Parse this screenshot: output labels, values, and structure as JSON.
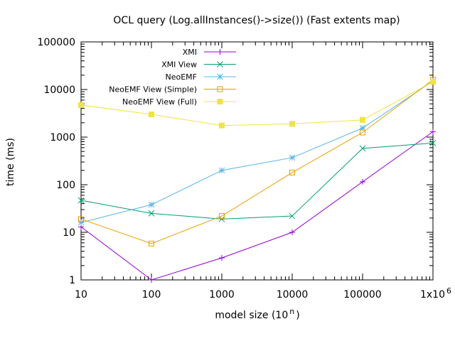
{
  "chart_data": {
    "type": "line",
    "title": "OCL query (Log.allInstances()->size()) (Fast extents map)",
    "xlabel_base": "model size (10",
    "xlabel_sup": "n",
    "xlabel_tail": ")",
    "ylabel": "time (ms)",
    "xscale": "log",
    "yscale": "log",
    "xlim": [
      10,
      1000000
    ],
    "ylim": [
      1,
      100000
    ],
    "grid": false,
    "legend_position": "top-right",
    "x_ticks": [
      {
        "value": 10,
        "label": "10"
      },
      {
        "value": 100,
        "label": "100"
      },
      {
        "value": 1000,
        "label": "1000"
      },
      {
        "value": 10000,
        "label": "10000"
      },
      {
        "value": 100000,
        "label": "100000"
      },
      {
        "value": 1000000,
        "label": "1x10",
        "sup": "6"
      }
    ],
    "y_ticks": [
      {
        "value": 1,
        "label": "1"
      },
      {
        "value": 10,
        "label": "10"
      },
      {
        "value": 100,
        "label": "100"
      },
      {
        "value": 1000,
        "label": "1000"
      },
      {
        "value": 10000,
        "label": "10000"
      },
      {
        "value": 100000,
        "label": "100000"
      }
    ],
    "x": [
      10,
      100,
      1000,
      10000,
      100000,
      1000000
    ],
    "series": [
      {
        "name": "XMI",
        "color": "#9400d3",
        "marker": "plus",
        "values": [
          13,
          1,
          2.9,
          10,
          115,
          1300
        ]
      },
      {
        "name": "XMI View",
        "color": "#009e73",
        "marker": "cross",
        "values": [
          47,
          25,
          19,
          22,
          580,
          750
        ]
      },
      {
        "name": "NeoEMF",
        "color": "#56b4e9",
        "marker": "star",
        "values": [
          16,
          38,
          200,
          370,
          1550,
          15000
        ]
      },
      {
        "name": "NeoEMF View (Simple)",
        "color": "#e69f00",
        "marker": "square-open",
        "values": [
          19,
          5.8,
          22,
          180,
          1250,
          16000
        ]
      },
      {
        "name": "NeoEMF View (Full)",
        "color": "#f0e442",
        "marker": "square-filled",
        "values": [
          4700,
          3000,
          1750,
          1900,
          2300,
          14500
        ]
      }
    ]
  }
}
